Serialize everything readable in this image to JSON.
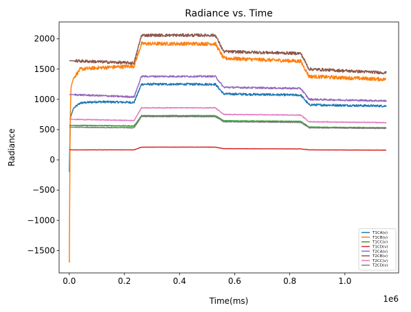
{
  "chart_data": {
    "type": "line",
    "title": "Radiance vs. Time",
    "xlabel": "Time(ms)",
    "ylabel": "Radiance",
    "x_offset_text": "1e6",
    "xlim": [
      -37000,
      1195000
    ],
    "ylim": [
      -1870,
      2280
    ],
    "xticks": [
      0,
      200000,
      400000,
      600000,
      800000,
      1000000
    ],
    "xtick_labels": [
      "0.0",
      "0.2",
      "0.4",
      "0.6",
      "0.8",
      "1.0"
    ],
    "yticks": [
      -1500,
      -1000,
      -500,
      0,
      500,
      1000,
      1500,
      2000
    ],
    "ytick_labels": [
      "−1500",
      "−1000",
      "−500",
      "0",
      "500",
      "1000",
      "1500",
      "2000"
    ],
    "grid": false,
    "legend_position": "bottom-right",
    "series": [
      {
        "name": "T1CA(v)",
        "color": "#1f77b4",
        "noise": 18,
        "x": [
          0,
          4000,
          15000,
          40000,
          100000,
          235000,
          262000,
          530000,
          560000,
          840000,
          870000,
          1150000
        ],
        "y": [
          -200,
          700,
          850,
          940,
          960,
          950,
          1250,
          1250,
          1090,
          1070,
          910,
          890
        ]
      },
      {
        "name": "T1CB(v)",
        "color": "#ff7f0e",
        "noise": 30,
        "x": [
          0,
          3000,
          6000,
          15000,
          40000,
          100000,
          235000,
          262000,
          530000,
          560000,
          840000,
          870000,
          1150000
        ],
        "y": [
          -1700,
          600,
          1200,
          1350,
          1500,
          1520,
          1550,
          1920,
          1920,
          1680,
          1630,
          1380,
          1330
        ]
      },
      {
        "name": "T1CC(v)",
        "color": "#2ca02c",
        "noise": 6,
        "x": [
          0,
          235000,
          262000,
          530000,
          560000,
          840000,
          870000,
          1150000
        ],
        "y": [
          570,
          560,
          730,
          730,
          645,
          635,
          540,
          530
        ]
      },
      {
        "name": "T1CD(v)",
        "color": "#d62728",
        "noise": 2,
        "x": [
          0,
          235000,
          262000,
          530000,
          560000,
          840000,
          870000,
          1150000
        ],
        "y": [
          165,
          165,
          210,
          210,
          185,
          180,
          165,
          160
        ]
      },
      {
        "name": "T2CA(v)",
        "color": "#9467bd",
        "noise": 14,
        "x": [
          0,
          235000,
          262000,
          530000,
          560000,
          840000,
          870000,
          1150000
        ],
        "y": [
          1080,
          1040,
          1380,
          1380,
          1200,
          1180,
          1000,
          975
        ]
      },
      {
        "name": "T2CB(v)",
        "color": "#8c564b",
        "noise": 24,
        "x": [
          0,
          235000,
          262000,
          530000,
          560000,
          840000,
          870000,
          1150000
        ],
        "y": [
          1640,
          1600,
          2060,
          2060,
          1790,
          1760,
          1500,
          1440
        ]
      },
      {
        "name": "T2CC(v)",
        "color": "#e377c2",
        "noise": 6,
        "x": [
          0,
          235000,
          262000,
          530000,
          560000,
          840000,
          870000,
          1150000
        ],
        "y": [
          670,
          650,
          860,
          860,
          750,
          740,
          630,
          615
        ]
      },
      {
        "name": "T2CD(v)",
        "color": "#7f7f7f",
        "noise": 6,
        "x": [
          0,
          235000,
          262000,
          530000,
          560000,
          840000,
          870000,
          1150000
        ],
        "y": [
          540,
          530,
          715,
          715,
          630,
          620,
          530,
          520
        ]
      }
    ]
  }
}
